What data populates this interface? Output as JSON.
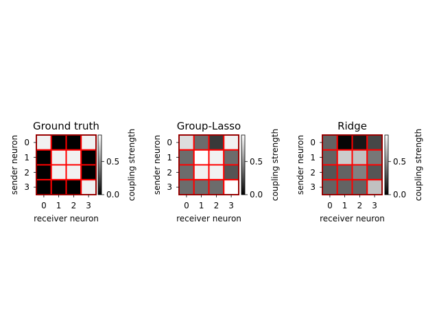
{
  "colormap": "gray",
  "grid_color": "#ff0000",
  "chart_data": [
    {
      "type": "heatmap",
      "title": "Ground truth",
      "xlabel": "receiver neuron",
      "ylabel": "sender neuron",
      "x_ticks": [
        "0",
        "1",
        "2",
        "3"
      ],
      "y_ticks": [
        "0",
        "1",
        "2",
        "3"
      ],
      "colorbar": {
        "label": "coupling strength",
        "range": [
          0.0,
          0.9
        ],
        "ticks": [
          "0.0",
          "0.5"
        ]
      },
      "values": [
        [
          0.85,
          0.0,
          0.0,
          0.85
        ],
        [
          0.0,
          0.85,
          0.85,
          0.0
        ],
        [
          0.0,
          0.85,
          0.85,
          0.0
        ],
        [
          0.0,
          0.0,
          0.0,
          0.85
        ]
      ]
    },
    {
      "type": "heatmap",
      "title": "Group-Lasso",
      "xlabel": "receiver neuron",
      "ylabel": "sender neuron",
      "x_ticks": [
        "0",
        "1",
        "2",
        "3"
      ],
      "y_ticks": [
        "0",
        "1",
        "2",
        "3"
      ],
      "colorbar": {
        "label": "coupling strength",
        "range": [
          0.0,
          0.9
        ],
        "ticks": [
          "0.0",
          "0.5"
        ]
      },
      "values": [
        [
          0.78,
          0.38,
          0.2,
          0.85
        ],
        [
          0.38,
          0.9,
          0.85,
          0.38
        ],
        [
          0.38,
          0.85,
          0.85,
          0.3
        ],
        [
          0.38,
          0.38,
          0.38,
          0.9
        ]
      ]
    },
    {
      "type": "heatmap",
      "title": "Ridge",
      "xlabel": "receiver neuron",
      "ylabel": "sender neuron",
      "x_ticks": [
        "0",
        "1",
        "2",
        "3"
      ],
      "y_ticks": [
        "0",
        "1",
        "2",
        "3"
      ],
      "colorbar": {
        "label": "coupling strength",
        "range": [
          0.0,
          0.9
        ],
        "ticks": [
          "0.0",
          "0.5"
        ]
      },
      "values": [
        [
          0.35,
          0.02,
          0.08,
          0.25
        ],
        [
          0.35,
          0.72,
          0.68,
          0.42
        ],
        [
          0.3,
          0.35,
          0.45,
          0.3
        ],
        [
          0.35,
          0.35,
          0.35,
          0.68
        ]
      ]
    }
  ]
}
